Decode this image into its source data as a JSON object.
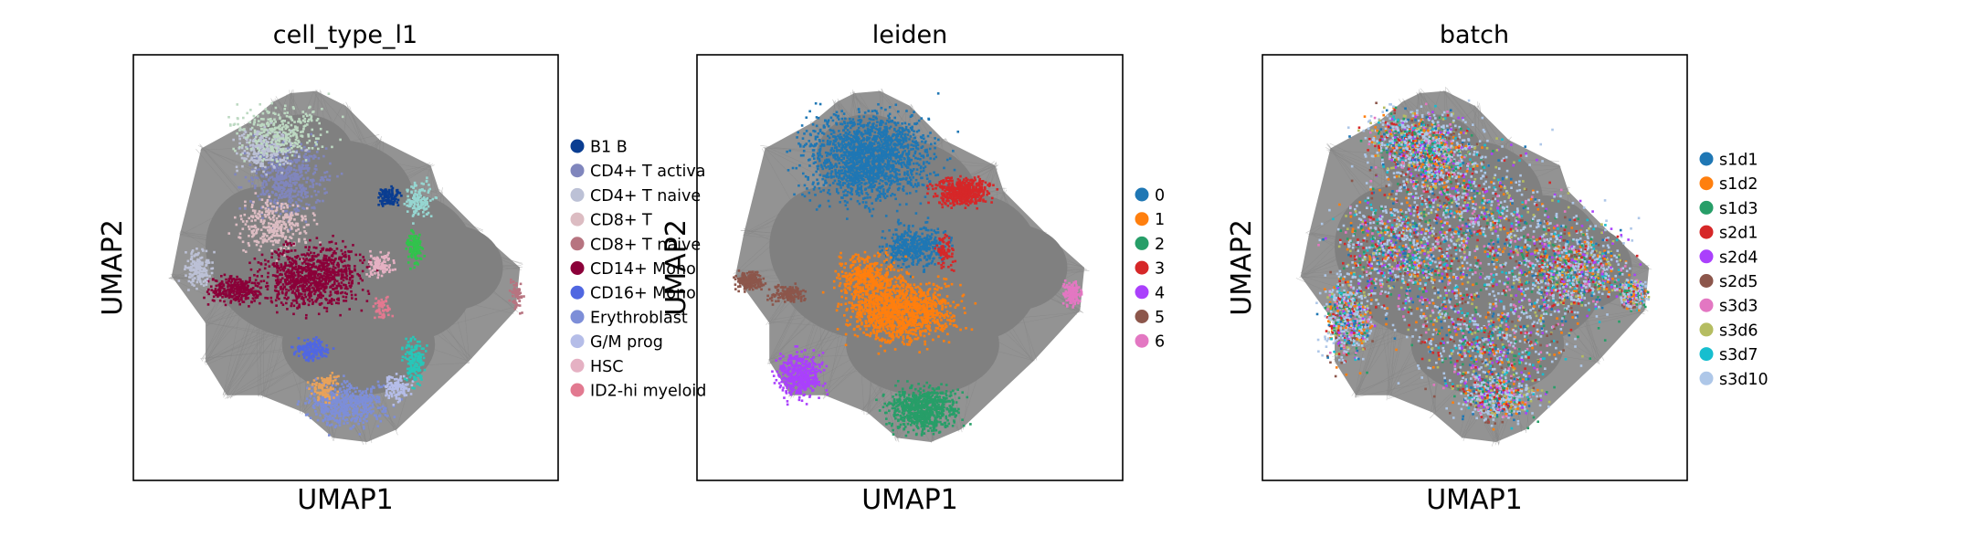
{
  "chart_data": [
    {
      "type": "scatter",
      "title": "cell_type_l1",
      "xlabel": "UMAP1",
      "ylabel": "UMAP2",
      "grid": false,
      "legend_position": "right",
      "legend_labels": [
        "B1 B",
        "CD4+ T activa",
        "CD4+ T naive",
        "CD8+ T",
        "CD8+ T naive",
        "CD14+ Mono",
        "CD16+ Mono",
        "Erythroblast",
        "G/M prog",
        "HSC",
        "ID2-hi myeloid"
      ],
      "series": [
        {
          "name": "B1 B",
          "color": "#0a3d91"
        },
        {
          "name": "CD4+ T activa",
          "color": "#8086bd"
        },
        {
          "name": "CD4+ T naive",
          "color": "#bcc1d6"
        },
        {
          "name": "CD8+ T",
          "color": "#dcbcc2"
        },
        {
          "name": "CD8+ T naive",
          "color": "#b77480"
        },
        {
          "name": "CD14+ Mono",
          "color": "#8b0039"
        },
        {
          "name": "CD16+ Mono",
          "color": "#5067e1"
        },
        {
          "name": "Erythroblast",
          "color": "#7d8ed8"
        },
        {
          "name": "G/M prog",
          "color": "#b5bde8"
        },
        {
          "name": "HSC",
          "color": "#e5b1c3"
        },
        {
          "name": "ID2-hi myeloid",
          "color": "#e27990"
        }
      ],
      "extra_colors": [
        "#bdd9c2",
        "#96d6d1",
        "#31c34c",
        "#e8a25a",
        "#d6a4d9",
        "#28c6b8"
      ]
    },
    {
      "type": "scatter",
      "title": "leiden",
      "xlabel": "UMAP1",
      "ylabel": "UMAP2",
      "grid": false,
      "legend_position": "right",
      "legend_labels": [
        "0",
        "1",
        "2",
        "3",
        "4",
        "5",
        "6"
      ],
      "series": [
        {
          "name": "0",
          "color": "#1f77b4"
        },
        {
          "name": "1",
          "color": "#ff7f0e"
        },
        {
          "name": "2",
          "color": "#279e68"
        },
        {
          "name": "3",
          "color": "#d62728"
        },
        {
          "name": "4",
          "color": "#aa40fc"
        },
        {
          "name": "5",
          "color": "#8c564b"
        },
        {
          "name": "6",
          "color": "#e377c2"
        }
      ]
    },
    {
      "type": "scatter",
      "title": "batch",
      "xlabel": "UMAP1",
      "ylabel": "UMAP2",
      "grid": false,
      "legend_position": "right",
      "legend_labels": [
        "s1d1",
        "s1d2",
        "s1d3",
        "s2d1",
        "s2d4",
        "s2d5",
        "s3d3",
        "s3d6",
        "s3d7",
        "s3d10"
      ],
      "series": [
        {
          "name": "s1d1",
          "color": "#1f77b4"
        },
        {
          "name": "s1d2",
          "color": "#ff7f0e"
        },
        {
          "name": "s1d3",
          "color": "#279e68"
        },
        {
          "name": "s2d1",
          "color": "#d62728"
        },
        {
          "name": "s2d4",
          "color": "#aa40fc"
        },
        {
          "name": "s2d5",
          "color": "#8c564b"
        },
        {
          "name": "s3d3",
          "color": "#e377c2"
        },
        {
          "name": "s3d6",
          "color": "#b5bd61"
        },
        {
          "name": "s3d7",
          "color": "#17becf"
        },
        {
          "name": "s3d10",
          "color": "#aec7e8"
        }
      ]
    }
  ],
  "style": {
    "background_cloud_color": "#808080",
    "edge_color": "#9a9a9a"
  }
}
